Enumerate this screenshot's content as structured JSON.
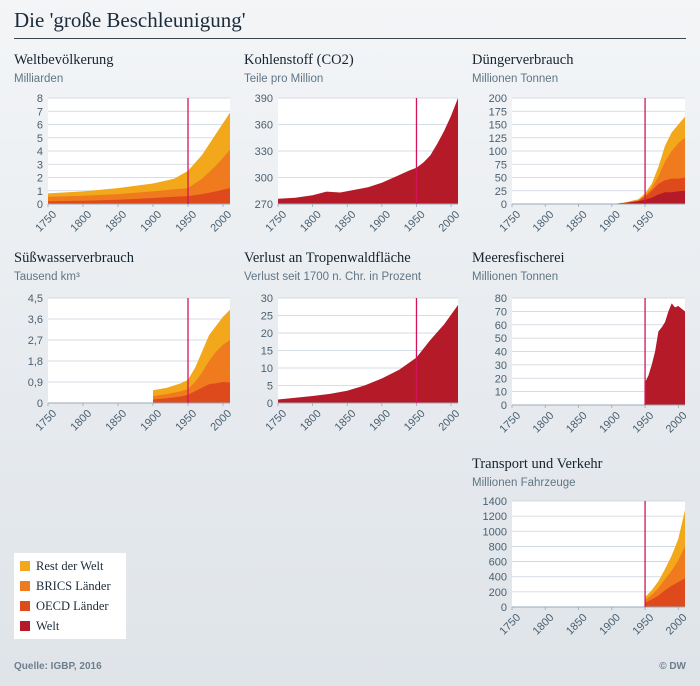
{
  "page": {
    "title": "Die 'große Beschleunigung'",
    "source": "Quelle: IGBP, 2016",
    "credit": "© DW"
  },
  "colors": {
    "rest": "#f2a81a",
    "brics": "#f07a1e",
    "oecd": "#df4a1c",
    "welt": "#b51a28",
    "marker": "#d4145a"
  },
  "legend": [
    {
      "label": "Rest der Welt",
      "color": "#f2a81a"
    },
    {
      "label": "BRICS Länder",
      "color": "#f07a1e"
    },
    {
      "label": "OECD Länder",
      "color": "#df4a1c"
    },
    {
      "label": "Welt",
      "color": "#b51a28"
    }
  ],
  "chart_data": [
    {
      "id": "bevoelkerung",
      "type": "area",
      "title": "Weltbevölkerung",
      "ylabel": "Milliarden",
      "xlim": [
        1750,
        2010
      ],
      "ylim": [
        0,
        8
      ],
      "marker_x": 1950,
      "xticks": [
        "1750",
        "1800",
        "1850",
        "1900",
        "1950",
        "2000"
      ],
      "yticks": [
        "0",
        "1",
        "2",
        "3",
        "4",
        "5",
        "6",
        "7",
        "8"
      ],
      "x": [
        1750,
        1800,
        1850,
        1900,
        1930,
        1950,
        1970,
        1990,
        2010
      ],
      "series": [
        {
          "name": "OECD Länder",
          "stack": [
            0.2,
            0.25,
            0.32,
            0.45,
            0.55,
            0.6,
            0.75,
            0.95,
            1.2
          ]
        },
        {
          "name": "BRICS Länder",
          "stack": [
            0.55,
            0.62,
            0.75,
            0.95,
            1.1,
            1.2,
            1.9,
            2.9,
            4.1
          ]
        },
        {
          "name": "Rest der Welt",
          "stack": [
            0.8,
            0.95,
            1.2,
            1.55,
            1.9,
            2.5,
            3.7,
            5.3,
            6.9
          ]
        }
      ]
    },
    {
      "id": "kohlenstoff",
      "type": "area",
      "title": "Kohlenstoff (CO2)",
      "ylabel": "Teile pro Million",
      "xlim": [
        1750,
        2010
      ],
      "ylim": [
        270,
        390
      ],
      "marker_x": 1950,
      "xticks": [
        "1750",
        "1800",
        "1850",
        "1900",
        "1950",
        "2000"
      ],
      "yticks": [
        "270",
        "300",
        "330",
        "360",
        "390"
      ],
      "x": [
        1750,
        1775,
        1800,
        1820,
        1840,
        1860,
        1880,
        1900,
        1920,
        1940,
        1950,
        1960,
        1970,
        1980,
        1990,
        2000,
        2010
      ],
      "series": [
        {
          "name": "Welt",
          "stack": [
            276,
            277,
            280,
            284,
            283,
            286,
            289,
            294,
            301,
            308,
            311,
            317,
            325,
            338,
            353,
            370,
            390
          ]
        }
      ]
    },
    {
      "id": "duenger",
      "type": "area",
      "title": "Düngerverbrauch",
      "ylabel": "Millionen Tonnen",
      "xlim": [
        1750,
        2010
      ],
      "ylim": [
        0,
        200
      ],
      "marker_x": 1950,
      "xticks": [
        "1750",
        "1800",
        "1850",
        "1900",
        "1950"
      ],
      "yticks": [
        "0",
        "25",
        "50",
        "75",
        "100",
        "125",
        "150",
        "175",
        "200"
      ],
      "x": [
        1750,
        1900,
        1920,
        1940,
        1950,
        1960,
        1970,
        1980,
        1990,
        2000,
        2010
      ],
      "series": [
        {
          "name": "Welt",
          "stack": [
            0,
            0,
            2,
            5,
            8,
            12,
            18,
            22,
            22,
            24,
            25
          ]
        },
        {
          "name": "OECD Länder",
          "stack": [
            0,
            0,
            2,
            6,
            14,
            25,
            38,
            45,
            48,
            48,
            50
          ]
        },
        {
          "name": "BRICS Länder",
          "stack": [
            0,
            0,
            2,
            7,
            16,
            30,
            52,
            80,
            100,
            115,
            125
          ]
        },
        {
          "name": "Rest der Welt",
          "stack": [
            0,
            0,
            3,
            9,
            20,
            38,
            70,
            110,
            135,
            150,
            165
          ]
        }
      ]
    },
    {
      "id": "suesswasser",
      "type": "area",
      "title": "Süßwasserverbrauch",
      "ylabel": "Tausend km³",
      "xlim": [
        1750,
        2010
      ],
      "ylim": [
        0,
        4.5
      ],
      "marker_x": 1950,
      "xticks": [
        "1750",
        "1800",
        "1850",
        "1900",
        "1950",
        "2000"
      ],
      "yticks": [
        "0",
        "0,9",
        "1,8",
        "2,7",
        "3,6",
        "4,5"
      ],
      "x": [
        1900,
        1920,
        1940,
        1950,
        1960,
        1970,
        1980,
        1990,
        2000,
        2010
      ],
      "series": [
        {
          "name": "OECD Länder",
          "stack": [
            0.15,
            0.2,
            0.28,
            0.35,
            0.5,
            0.65,
            0.8,
            0.85,
            0.9,
            0.88
          ]
        },
        {
          "name": "BRICS Länder",
          "stack": [
            0.3,
            0.38,
            0.5,
            0.6,
            0.9,
            1.3,
            1.8,
            2.2,
            2.5,
            2.7
          ]
        },
        {
          "name": "Rest der Welt",
          "stack": [
            0.55,
            0.65,
            0.85,
            1.0,
            1.5,
            2.2,
            2.9,
            3.3,
            3.7,
            4.0
          ]
        }
      ]
    },
    {
      "id": "tropenwald",
      "type": "area",
      "title": "Verlust an Tropenwaldfläche",
      "ylabel": "Verlust seit 1700 n. Chr. in Prozent",
      "xlim": [
        1750,
        2010
      ],
      "ylim": [
        0,
        30
      ],
      "marker_x": 1950,
      "xticks": [
        "1750",
        "1800",
        "1850",
        "1900",
        "1950",
        "2000"
      ],
      "yticks": [
        "0",
        "5",
        "10",
        "15",
        "20",
        "25",
        "30"
      ],
      "x": [
        1750,
        1775,
        1800,
        1825,
        1850,
        1875,
        1900,
        1925,
        1950,
        1970,
        1990,
        2010
      ],
      "series": [
        {
          "name": "Welt",
          "stack": [
            1,
            1.5,
            2,
            2.6,
            3.5,
            5,
            7,
            9.5,
            13,
            18,
            22.5,
            28
          ]
        }
      ]
    },
    {
      "id": "fischerei",
      "type": "area",
      "title": "Meeresfischerei",
      "ylabel": "Millionen Tonnen",
      "xlim": [
        1750,
        2010
      ],
      "ylim": [
        0,
        80
      ],
      "marker_x": 1950,
      "xticks": [
        "1750",
        "1800",
        "1850",
        "1900",
        "1950",
        "2000"
      ],
      "yticks": [
        "0",
        "10",
        "20",
        "30",
        "40",
        "50",
        "60",
        "70",
        "80"
      ],
      "x": [
        1950,
        1955,
        1960,
        1965,
        1970,
        1975,
        1980,
        1985,
        1990,
        1995,
        2000,
        2005,
        2010
      ],
      "series": [
        {
          "name": "Welt",
          "stack": [
            17,
            22,
            30,
            40,
            55,
            58,
            62,
            70,
            76,
            73,
            74,
            72,
            70
          ]
        }
      ]
    },
    {
      "id": "transport",
      "type": "area",
      "title": "Transport und Verkehr",
      "ylabel": "Millionen Fahrzeuge",
      "xlim": [
        1750,
        2010
      ],
      "ylim": [
        0,
        1400
      ],
      "marker_x": 1950,
      "xticks": [
        "1750",
        "1800",
        "1850",
        "1900",
        "1950",
        "2000"
      ],
      "yticks": [
        "0",
        "200",
        "400",
        "600",
        "800",
        "1000",
        "1200",
        "1400"
      ],
      "x": [
        1950,
        1960,
        1970,
        1980,
        1990,
        2000,
        2010
      ],
      "series": [
        {
          "name": "OECD Länder",
          "stack": [
            60,
            100,
            150,
            220,
            280,
            330,
            380
          ]
        },
        {
          "name": "BRICS Länder",
          "stack": [
            90,
            160,
            250,
            370,
            480,
            620,
            800
          ]
        },
        {
          "name": "Rest der Welt",
          "stack": [
            130,
            220,
            340,
            500,
            680,
            900,
            1280
          ]
        }
      ]
    }
  ]
}
